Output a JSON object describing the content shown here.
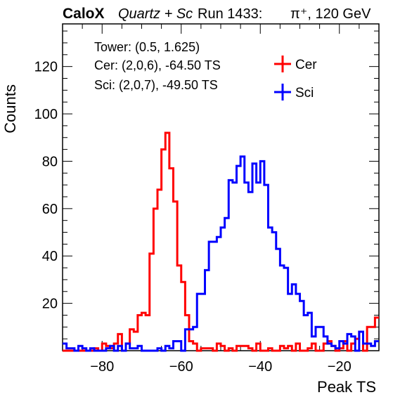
{
  "header": {
    "brand": "CaloX",
    "subtitle_italic": "Quartz + Sc",
    "run": "Run 1433:",
    "beam": "π⁺, 120 GeV"
  },
  "annotations": [
    "Tower: (0.5, 1.625)",
    "Cer: (2,0,6), -64.50 TS",
    "Sci: (2,0,7), -49.50 TS"
  ],
  "legend": [
    {
      "label": "Cer",
      "color": "#ff0000"
    },
    {
      "label": "Sci",
      "color": "#0000ff"
    }
  ],
  "chart_data": {
    "type": "line",
    "style": "step-histogram",
    "xlabel": "Peak TS",
    "ylabel": "Counts",
    "xlim": [
      -90,
      -10
    ],
    "ylim": [
      0,
      138
    ],
    "x_ticks": [
      -80,
      -60,
      -40,
      -20
    ],
    "y_ticks": [
      20,
      40,
      60,
      80,
      100,
      120
    ],
    "bin_edges_start": -90,
    "bin_width": 1,
    "grid": false,
    "legend_position": "top-right",
    "series": [
      {
        "name": "Cer",
        "color": "#ff0000",
        "values": [
          0,
          0,
          0,
          0,
          0,
          0,
          0,
          0,
          1,
          0,
          3,
          2,
          1,
          3,
          7,
          0,
          3,
          9,
          8,
          15,
          16,
          15,
          41,
          60,
          68,
          85,
          92,
          77,
          63,
          36,
          29,
          15,
          4,
          3,
          0,
          1,
          1,
          1,
          0,
          3,
          2,
          0,
          1,
          0,
          2,
          2,
          2,
          1,
          0,
          3,
          0,
          0,
          1,
          0,
          0,
          2,
          1,
          2,
          0,
          3,
          0,
          0,
          1,
          3,
          0,
          0,
          3,
          4,
          2,
          0,
          1,
          4,
          0,
          3,
          5,
          8,
          0,
          10,
          10,
          14
        ]
      },
      {
        "name": "Sci",
        "color": "#0000ff",
        "values": [
          3,
          1,
          1,
          0,
          2,
          1,
          0,
          1,
          0,
          0,
          0,
          1,
          2,
          0,
          2,
          0,
          3,
          1,
          1,
          2,
          0,
          0,
          0,
          0,
          1,
          0,
          2,
          1,
          4,
          4,
          0,
          9,
          9,
          10,
          24,
          24,
          34,
          46,
          46,
          48,
          52,
          56,
          72,
          71,
          78,
          82,
          71,
          67,
          79,
          71,
          80,
          70,
          52,
          50,
          43,
          36,
          35,
          24,
          28,
          24,
          21,
          15,
          16,
          6,
          10,
          10,
          6,
          3,
          2,
          1,
          4,
          3,
          7,
          6,
          0,
          8,
          3,
          3,
          2,
          4
        ]
      }
    ]
  }
}
